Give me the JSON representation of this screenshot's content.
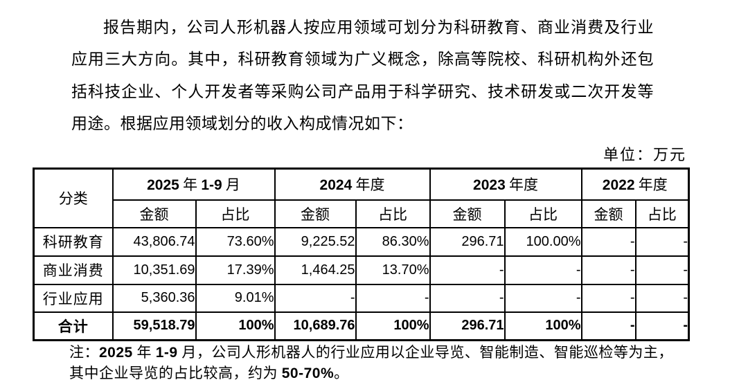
{
  "paragraph": {
    "line1": "报告期内，公司人形机器人按应用领域可划分为科研教育、商业消费及行业",
    "line2": "应用三大方向。其中，科研教育领域为广义概念，除高等院校、科研机构外还包",
    "line3": "括科技企业、个人开发者等采购公司产品用于科学研究、技术研发或二次开发等",
    "line4": "用途。根据应用领域划分的收入构成情况如下："
  },
  "unit_label": "单位：万元",
  "table": {
    "category_header": "分类",
    "periods": [
      "2025 年 1-9 月",
      "2024 年度",
      "2023 年度",
      "2022 年度"
    ],
    "sub_headers": {
      "amount": "金额",
      "ratio": "占比"
    },
    "rows": [
      {
        "category": "科研教育",
        "cells": [
          "43,806.74",
          "73.60%",
          "9,225.52",
          "86.30%",
          "296.71",
          "100.00%",
          "-",
          "-"
        ]
      },
      {
        "category": "商业消费",
        "cells": [
          "10,351.69",
          "17.39%",
          "1,464.25",
          "13.70%",
          "-",
          "-",
          "-",
          "-"
        ]
      },
      {
        "category": "行业应用",
        "cells": [
          "5,360.36",
          "9.01%",
          "-",
          "-",
          "-",
          "-",
          "-",
          "-"
        ]
      }
    ],
    "total_row": {
      "category": "合计",
      "cells": [
        "59,518.79",
        "100%",
        "10,689.76",
        "100%",
        "296.71",
        "100%",
        "-",
        "-"
      ]
    }
  },
  "note": {
    "line1": "注：2025 年 1-9 月，公司人形机器人的行业应用以企业导览、智能制造、智能巡检等为主，",
    "line2": "其中企业导览的占比较高，约为 50-70%。"
  }
}
